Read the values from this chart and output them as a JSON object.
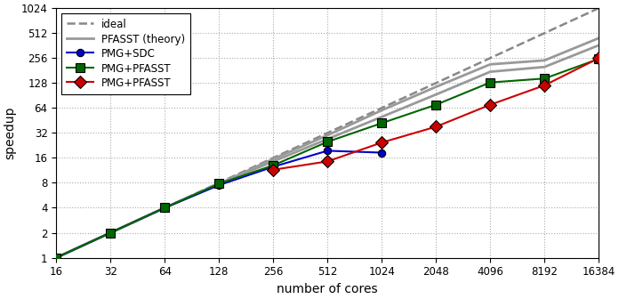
{
  "xlabel": "number of cores",
  "ylabel": "speedup",
  "background_color": "#ffffff",
  "grid_color": "#aaaaaa",
  "cores_ideal": [
    16,
    32,
    64,
    128,
    256,
    512,
    1024,
    2048,
    4096,
    8192,
    16384
  ],
  "ideal_speedup": [
    1,
    2,
    4,
    8,
    16,
    32,
    64,
    128,
    256,
    512,
    1024
  ],
  "pfasst_theory_x": [
    16,
    32,
    64,
    128,
    256,
    512,
    1024,
    2048,
    4096,
    8192,
    16384
  ],
  "pfasst_theory_y1": [
    1.0,
    2.0,
    4.0,
    7.8,
    14.5,
    27.0,
    50.0,
    93.0,
    175.0,
    200.0,
    365.0
  ],
  "pfasst_theory_y2": [
    1.0,
    2.0,
    4.0,
    7.8,
    15.5,
    30.0,
    60.0,
    115.0,
    215.0,
    240.0,
    445.0
  ],
  "pmg_sdc_x": [
    16,
    32,
    64,
    128,
    256,
    512,
    1024
  ],
  "pmg_sdc_y": [
    1.0,
    2.0,
    4.0,
    7.5,
    12.5,
    19.5,
    18.5
  ],
  "pmg_pfasst_small_x": [
    16,
    32,
    64,
    128,
    256,
    512,
    1024,
    2048,
    4096,
    8192,
    16384
  ],
  "pmg_pfasst_small_y": [
    1.0,
    2.0,
    4.0,
    7.8,
    13.0,
    25.0,
    42.0,
    70.0,
    130.0,
    145.0,
    250.0
  ],
  "pmg_pfasst_large_x": [
    256,
    512,
    1024,
    2048,
    4096,
    8192,
    16384
  ],
  "pmg_pfasst_large_y": [
    11.5,
    14.5,
    24.5,
    38.0,
    70.0,
    120.0,
    255.0
  ],
  "color_ideal": "#888888",
  "color_theory": "#999999",
  "color_sdc": "#0000cc",
  "color_small": "#006600",
  "color_large": "#cc0000",
  "xticks": [
    16,
    32,
    64,
    128,
    256,
    512,
    1024,
    2048,
    4096,
    8192,
    16384
  ],
  "yticks": [
    1,
    2,
    4,
    8,
    16,
    32,
    64,
    128,
    256,
    512,
    1024
  ],
  "xmin": 16,
  "xmax": 16384,
  "ymin": 1,
  "ymax": 1024
}
